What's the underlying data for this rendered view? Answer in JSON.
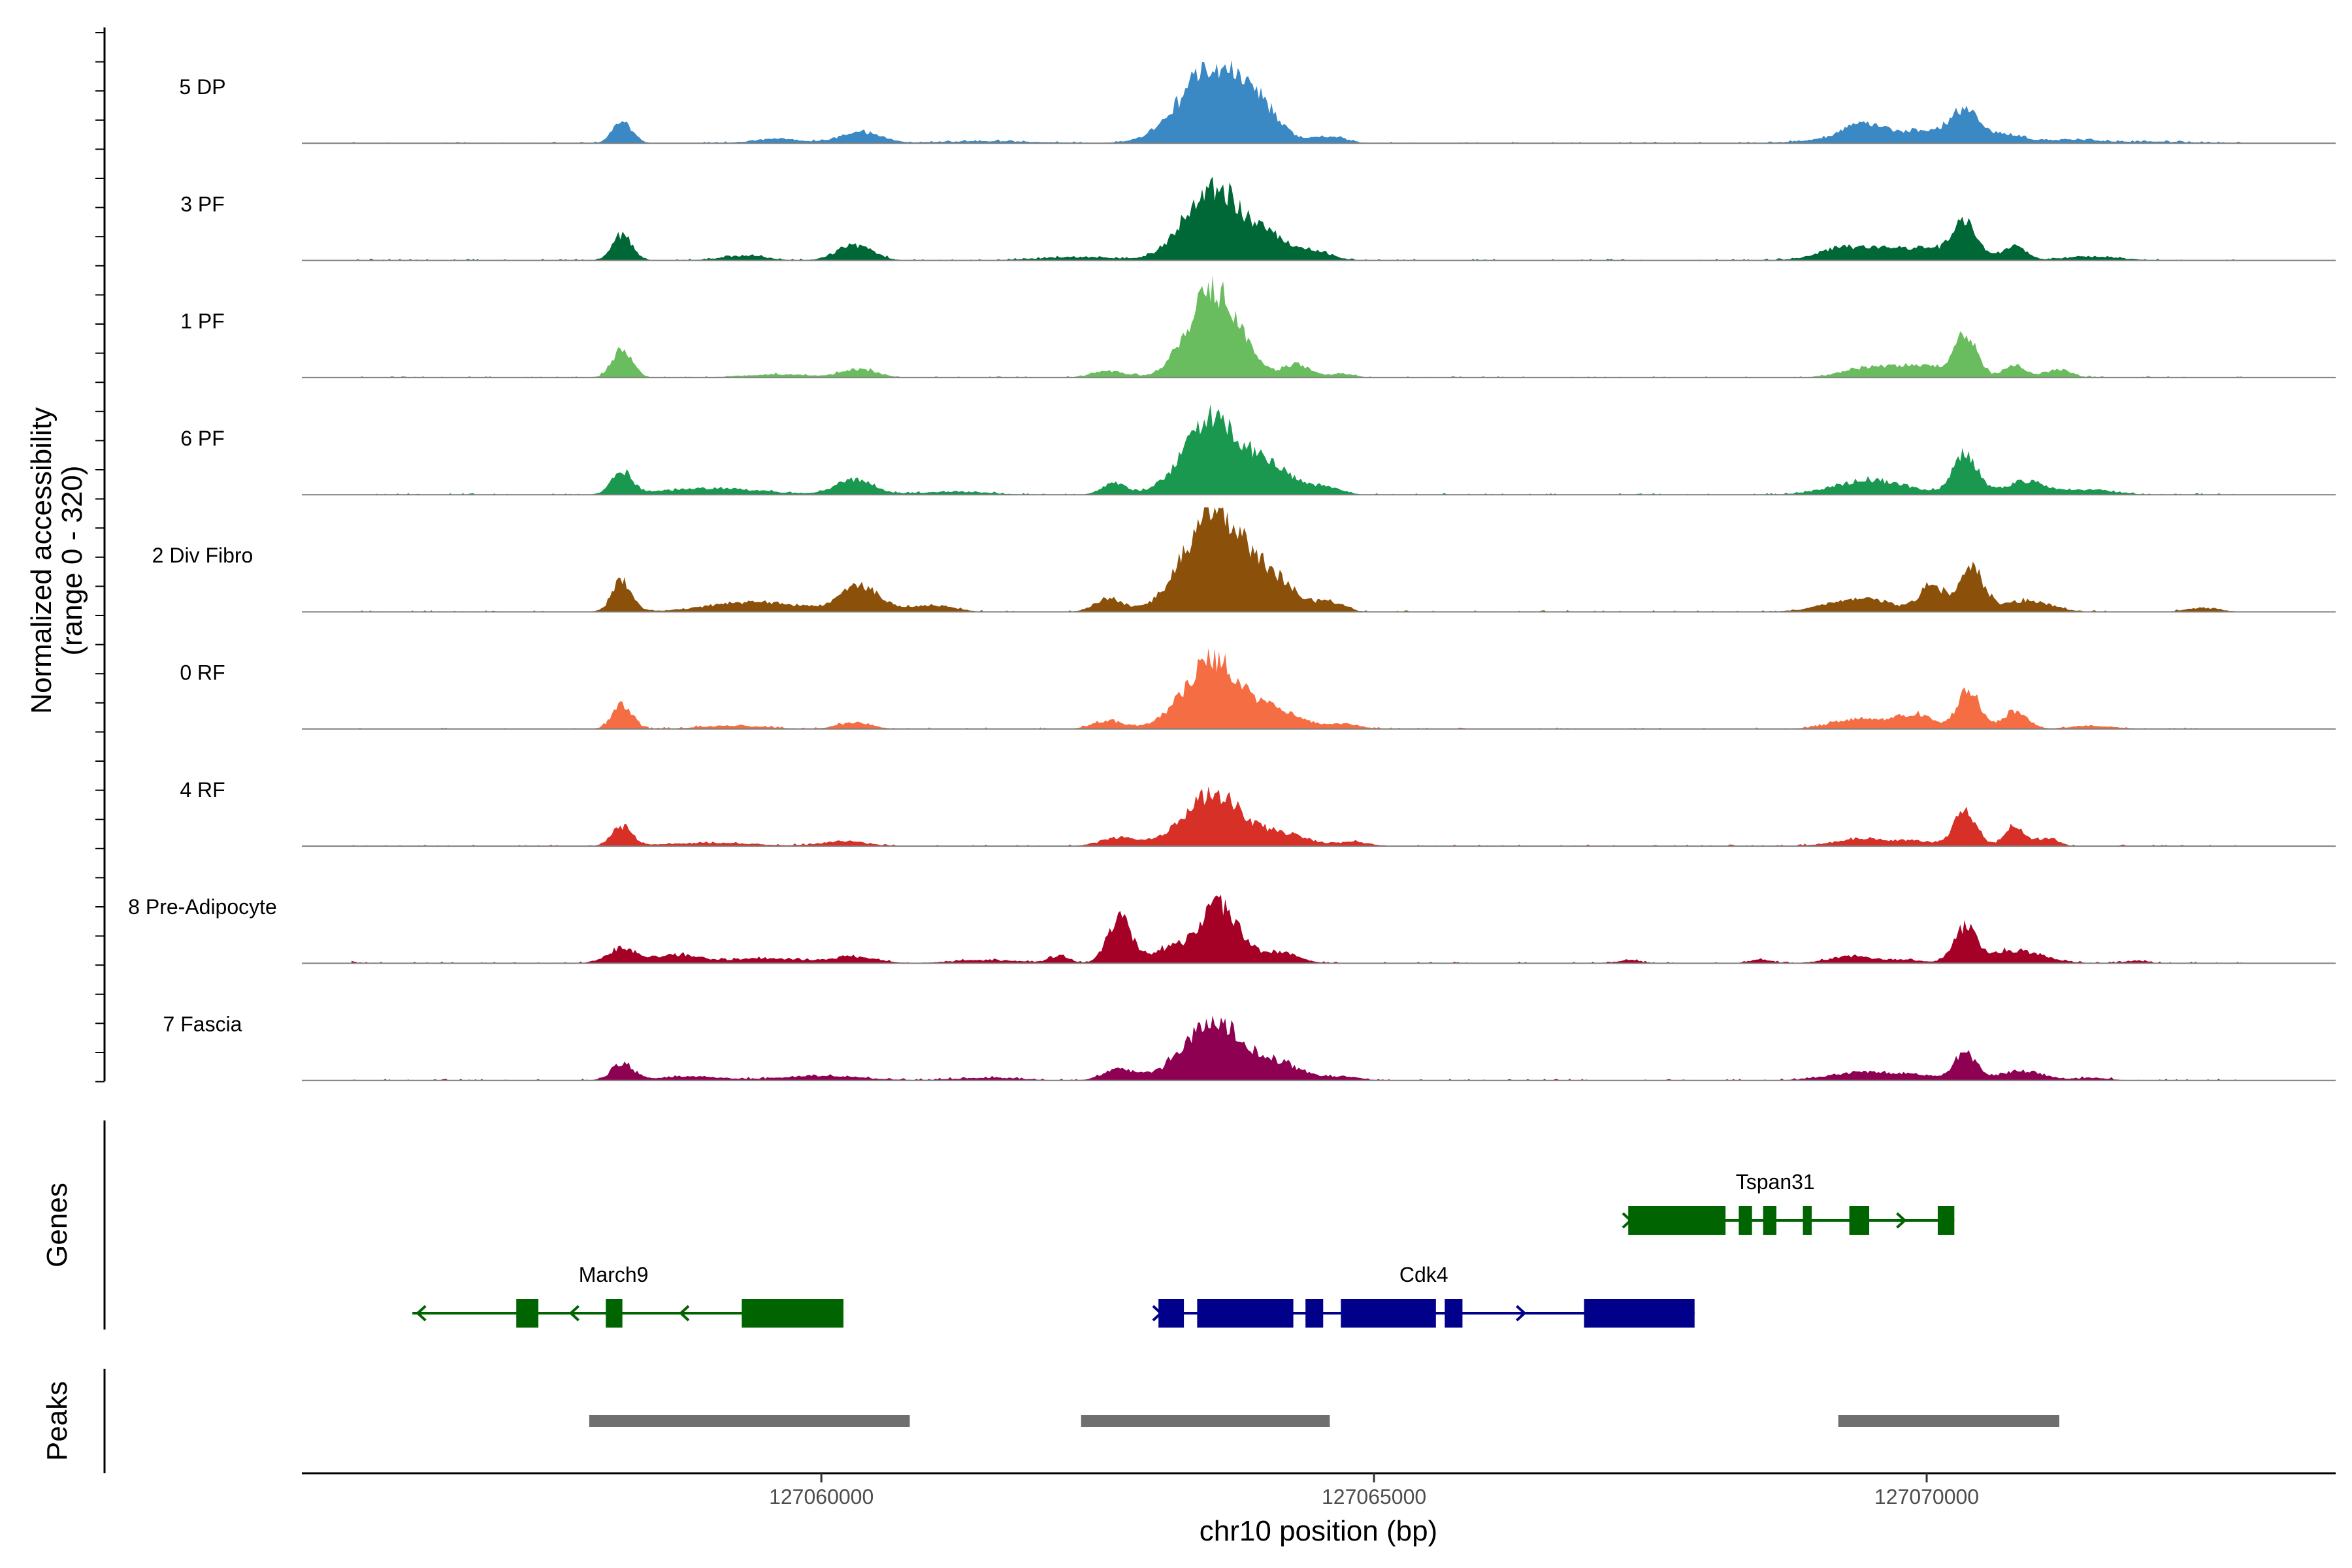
{
  "chart_data": {
    "type": "area",
    "chromosome": "chr10",
    "xlabel": "chr10 position (bp)",
    "ylabel": "Normalized accessibility",
    "ylabel_range": "(range 0 - 320)",
    "ylim": [
      0,
      320
    ],
    "xlim": [
      127055300,
      127073700
    ],
    "xticks": [
      127060000,
      127065000,
      127070000
    ],
    "xtick_labels": [
      "127060000",
      "127065000",
      "127070000"
    ],
    "panel_titles": {
      "genes": "Genes",
      "peaks": "Peaks"
    },
    "tracks": [
      {
        "name": "5 DP",
        "color": "#3A88C4",
        "peaks": [
          [
            127058200,
            65,
            90
          ],
          [
            127059600,
            14,
            220
          ],
          [
            127060350,
            35,
            180
          ],
          [
            127061500,
            6,
            500
          ],
          [
            127063550,
            230,
            300
          ],
          [
            127064000,
            60,
            160
          ],
          [
            127064600,
            22,
            140
          ],
          [
            127069400,
            30,
            160
          ],
          [
            127069800,
            38,
            500
          ],
          [
            127070350,
            82,
            130
          ],
          [
            127070750,
            22,
            150
          ],
          [
            127071300,
            10,
            200
          ],
          [
            127072000,
            5,
            400
          ]
        ]
      },
      {
        "name": "3 PF",
        "color": "#006837",
        "peaks": [
          [
            127058200,
            80,
            90
          ],
          [
            127059300,
            15,
            200
          ],
          [
            127060300,
            48,
            160
          ],
          [
            127062300,
            10,
            350
          ],
          [
            127063550,
            220,
            260
          ],
          [
            127064100,
            55,
            200
          ],
          [
            127064500,
            22,
            140
          ],
          [
            127069200,
            25,
            200
          ],
          [
            127069800,
            40,
            420
          ],
          [
            127070350,
            100,
            110
          ],
          [
            127070800,
            40,
            100
          ],
          [
            127071500,
            12,
            250
          ]
        ]
      },
      {
        "name": "1 PF",
        "color": "#6ABD5F",
        "peaks": [
          [
            127058200,
            85,
            90
          ],
          [
            127059600,
            10,
            300
          ],
          [
            127060350,
            25,
            160
          ],
          [
            127062600,
            20,
            150
          ],
          [
            127063550,
            270,
            230
          ],
          [
            127064300,
            40,
            120
          ],
          [
            127064700,
            12,
            120
          ],
          [
            127069400,
            25,
            200
          ],
          [
            127069900,
            40,
            250
          ],
          [
            127070350,
            130,
            100
          ],
          [
            127070800,
            35,
            110
          ],
          [
            127071200,
            25,
            110
          ]
        ]
      },
      {
        "name": "6 PF",
        "color": "#1A9850",
        "peaks": [
          [
            127058200,
            70,
            90
          ],
          [
            127059000,
            20,
            450
          ],
          [
            127060300,
            45,
            170
          ],
          [
            127061200,
            10,
            300
          ],
          [
            127062650,
            35,
            110
          ],
          [
            127063550,
            240,
            260
          ],
          [
            127064100,
            70,
            180
          ],
          [
            127064550,
            25,
            140
          ],
          [
            127069500,
            45,
            320
          ],
          [
            127070350,
            120,
            110
          ],
          [
            127070900,
            40,
            200
          ],
          [
            127071500,
            15,
            200
          ]
        ]
      },
      {
        "name": "2 Div Fibro",
        "color": "#8B510A",
        "peaks": [
          [
            127058200,
            95,
            90
          ],
          [
            127059400,
            30,
            420
          ],
          [
            127060350,
            80,
            170
          ],
          [
            127061000,
            20,
            200
          ],
          [
            127062600,
            40,
            130
          ],
          [
            127063550,
            310,
            270
          ],
          [
            127064100,
            85,
            200
          ],
          [
            127064600,
            30,
            130
          ],
          [
            127069400,
            40,
            300
          ],
          [
            127070050,
            80,
            110
          ],
          [
            127070400,
            140,
            110
          ],
          [
            127070900,
            35,
            220
          ],
          [
            127072500,
            12,
            150
          ]
        ]
      },
      {
        "name": "0 RF",
        "color": "#F46D43",
        "peaks": [
          [
            127058200,
            75,
            90
          ],
          [
            127059200,
            10,
            300
          ],
          [
            127060300,
            20,
            150
          ],
          [
            127062600,
            25,
            140
          ],
          [
            127063550,
            210,
            260
          ],
          [
            127064150,
            45,
            200
          ],
          [
            127064700,
            15,
            160
          ],
          [
            127069400,
            30,
            250
          ],
          [
            127069900,
            45,
            150
          ],
          [
            127070380,
            120,
            100
          ],
          [
            127070800,
            55,
            110
          ],
          [
            127071500,
            10,
            200
          ]
        ]
      },
      {
        "name": "4 RF",
        "color": "#D73027",
        "peaks": [
          [
            127058200,
            60,
            90
          ],
          [
            127059000,
            10,
            400
          ],
          [
            127060200,
            15,
            200
          ],
          [
            127062700,
            25,
            170
          ],
          [
            127063550,
            160,
            260
          ],
          [
            127064200,
            35,
            200
          ],
          [
            127064800,
            12,
            160
          ],
          [
            127069400,
            20,
            250
          ],
          [
            127069900,
            15,
            200
          ],
          [
            127070350,
            110,
            100
          ],
          [
            127070800,
            65,
            90
          ],
          [
            127071100,
            25,
            90
          ]
        ]
      },
      {
        "name": "8 Pre-Adipocyte",
        "color": "#A50026",
        "peaks": [
          [
            127055700,
            10,
            60
          ],
          [
            127058200,
            45,
            140
          ],
          [
            127058700,
            25,
            200
          ],
          [
            127059500,
            15,
            350
          ],
          [
            127060300,
            20,
            200
          ],
          [
            127061500,
            10,
            300
          ],
          [
            127062150,
            22,
            90
          ],
          [
            127062700,
            140,
            110
          ],
          [
            127063150,
            45,
            150
          ],
          [
            127063600,
            175,
            180
          ],
          [
            127064150,
            35,
            160
          ],
          [
            127067300,
            10,
            100
          ],
          [
            127068500,
            12,
            100
          ],
          [
            127069300,
            20,
            200
          ],
          [
            127069800,
            10,
            200
          ],
          [
            127070350,
            105,
            100
          ],
          [
            127070800,
            40,
            250
          ],
          [
            127071900,
            8,
            100
          ]
        ]
      },
      {
        "name": "7 Fascia",
        "color": "#8E0152",
        "peaks": [
          [
            127058200,
            48,
            100
          ],
          [
            127058800,
            12,
            300
          ],
          [
            127060000,
            15,
            350
          ],
          [
            127061500,
            8,
            300
          ],
          [
            127062700,
            35,
            140
          ],
          [
            127063550,
            180,
            270
          ],
          [
            127064150,
            45,
            200
          ],
          [
            127064700,
            12,
            160
          ],
          [
            127069400,
            25,
            280
          ],
          [
            127069900,
            15,
            200
          ],
          [
            127070350,
            85,
            100
          ],
          [
            127070850,
            30,
            200
          ],
          [
            127071500,
            8,
            150
          ]
        ]
      }
    ],
    "genes": [
      {
        "name": "March9",
        "strand": "-",
        "color": "#006400",
        "start": 127056300,
        "end": 127060200,
        "exons": [
          [
            127057240,
            127057440
          ],
          [
            127058050,
            127058200
          ],
          [
            127059280,
            127060200
          ]
        ]
      },
      {
        "name": "Cdk4",
        "strand": "+",
        "color": "#00008B",
        "start": 127063050,
        "end": 127067900,
        "exons": [
          [
            127063050,
            127063280
          ],
          [
            127063400,
            127064270
          ],
          [
            127064380,
            127064540
          ],
          [
            127064700,
            127065560
          ],
          [
            127065640,
            127065800
          ],
          [
            127066900,
            127067900
          ]
        ]
      },
      {
        "name": "Tspan31",
        "strand": "+",
        "color": "#006400",
        "start": 127067300,
        "end": 127070250,
        "exons": [
          [
            127067300,
            127068180
          ],
          [
            127068300,
            127068420
          ],
          [
            127068520,
            127068640
          ],
          [
            127068880,
            127068960
          ],
          [
            127069300,
            127069480
          ],
          [
            127070100,
            127070250
          ]
        ]
      }
    ],
    "peak_regions": [
      [
        127057900,
        127060800
      ],
      [
        127062350,
        127064600
      ],
      [
        127069200,
        127071200
      ]
    ]
  }
}
